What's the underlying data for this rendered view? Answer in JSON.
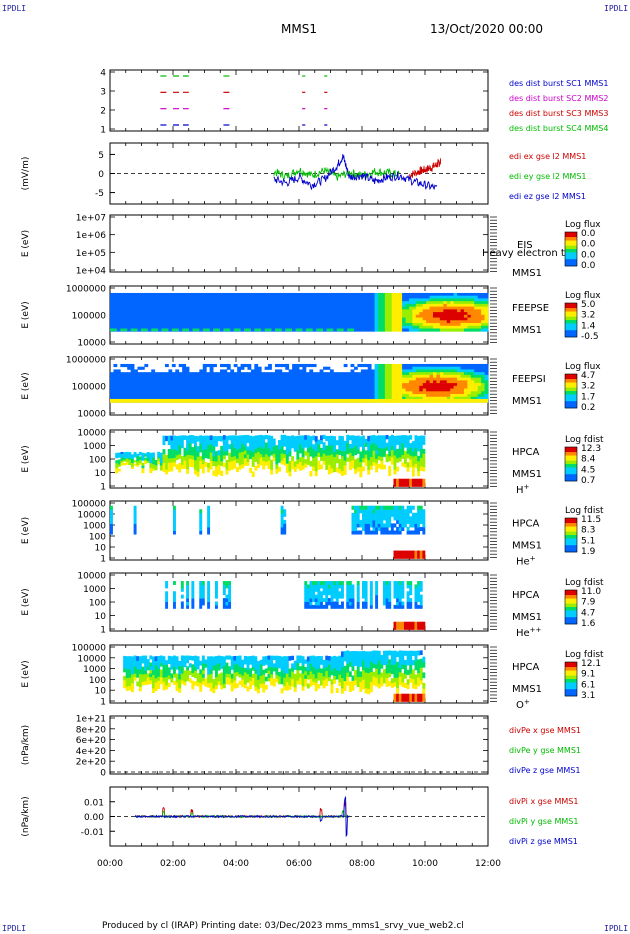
{
  "corners": {
    "tl": "IPDLI",
    "tr": "IPDLI",
    "bl": "IPDLI",
    "br": "IPDLI"
  },
  "header": {
    "mission": "MMS1",
    "date": "13/Oct/2020 00:00"
  },
  "footer": {
    "text": "Produced by cl (IRAP)    Printing date: 03/Dec/2023    mms_mms1_srvy_vue_web2.cl"
  },
  "colors": {
    "c1": "#0000cc",
    "c2": "#cc00cc",
    "c3": "#cc0000",
    "c4": "#00bb00"
  },
  "chart_data": [
    {
      "type": "line",
      "name": "burst-availability",
      "ylim": [
        0.5,
        4.5
      ],
      "yticks": [
        "1",
        "2",
        "3",
        "4"
      ],
      "series": [
        {
          "name": "des dist burst SC1 MMS1",
          "color": "#0000cc",
          "level": 1,
          "segments": [
            [
              1.6,
              1.8
            ],
            [
              2.0,
              2.5
            ],
            [
              3.6,
              3.8
            ],
            [
              6.1,
              6.2
            ],
            [
              6.8,
              6.9
            ]
          ]
        },
        {
          "name": "des dist burst SC2 MMS2",
          "color": "#cc00cc",
          "level": 2,
          "segments": [
            [
              1.6,
              1.8
            ],
            [
              2.0,
              2.5
            ],
            [
              3.6,
              3.8
            ],
            [
              6.1,
              6.2
            ],
            [
              6.8,
              6.9
            ]
          ]
        },
        {
          "name": "des dist burst SC3 MMS3",
          "color": "#cc0000",
          "level": 3,
          "segments": [
            [
              1.6,
              1.8
            ],
            [
              2.0,
              2.5
            ],
            [
              3.6,
              3.8
            ],
            [
              6.1,
              6.2
            ],
            [
              6.8,
              6.9
            ]
          ]
        },
        {
          "name": "des dist burst SC4 MMS4",
          "color": "#00bb00",
          "level": 4,
          "segments": [
            [
              1.6,
              1.8
            ],
            [
              2.0,
              2.5
            ],
            [
              3.6,
              3.8
            ],
            [
              6.1,
              6.2
            ],
            [
              6.8,
              6.9
            ]
          ]
        }
      ]
    },
    {
      "type": "line",
      "name": "edi-efield",
      "ylabel": "(mV/m)",
      "ylim": [
        -8,
        8
      ],
      "yticks": [
        "-5",
        "0",
        "5"
      ],
      "series": [
        {
          "name": "edi ex gse l2 MMS1",
          "color": "#cc0000",
          "x": [
            9.5,
            9.8,
            10.0,
            10.2,
            10.4,
            10.5
          ],
          "y": [
            -0.5,
            0.5,
            1.0,
            1.5,
            2.5,
            3.0
          ]
        },
        {
          "name": "edi ey gse l2 MMS1",
          "color": "#00bb00",
          "x": [
            5.2,
            5.6,
            6.0,
            6.4,
            6.8,
            7.2,
            7.6,
            8.0,
            8.4,
            8.8,
            9.2
          ],
          "y": [
            0.5,
            -0.8,
            1.0,
            -0.5,
            0.8,
            -1.0,
            0.3,
            -0.5,
            0.5,
            0.2,
            -0.3
          ]
        },
        {
          "name": "edi ez gse l2 MMS1",
          "color": "#0000cc",
          "x": [
            5.2,
            5.6,
            6.0,
            6.4,
            6.8,
            7.2,
            7.4,
            7.6,
            8.0,
            8.4,
            8.8,
            9.2,
            9.6,
            10.0,
            10.4
          ],
          "y": [
            -1.5,
            -2.5,
            -1.0,
            -3.0,
            -1.5,
            2.0,
            4.5,
            -1.0,
            -0.5,
            -2.0,
            -1.0,
            -0.5,
            -2.0,
            -3.0,
            -4.0
          ]
        }
      ]
    },
    {
      "type": "heatmap",
      "name": "eis",
      "ylabel": "E (eV)",
      "yticks": [
        "1e+04",
        "1e+05",
        "1e+06",
        "1e+07"
      ],
      "labels": [
        "EIS",
        "MMS1"
      ],
      "overlap_text": "Heavy electron tof",
      "colorbar": {
        "title": "Log flux",
        "ticks": [
          "0.0",
          "0.0",
          "0.0",
          "0.0"
        ]
      }
    },
    {
      "type": "heatmap",
      "name": "feeps-electron",
      "ylabel": "E (eV)",
      "yticks": [
        "10000",
        "100000",
        "1000000"
      ],
      "labels": [
        "FEEPSE",
        "MMS1"
      ],
      "colorbar": {
        "title": "Log flux",
        "ticks": [
          "5.0",
          "3.2",
          "1.4",
          "-0.5"
        ]
      }
    },
    {
      "type": "heatmap",
      "name": "feeps-ion",
      "ylabel": "E (eV)",
      "yticks": [
        "10000",
        "100000",
        "1000000"
      ],
      "labels": [
        "FEEPSI",
        "MMS1"
      ],
      "colorbar": {
        "title": "Log flux",
        "ticks": [
          "4.7",
          "3.2",
          "1.7",
          "0.2"
        ]
      }
    },
    {
      "type": "heatmap",
      "name": "hpca-h",
      "ylabel": "E (eV)",
      "yticks": [
        "1",
        "10",
        "100",
        "1000",
        "10000"
      ],
      "labels": [
        "HPCA",
        "MMS1"
      ],
      "species": "H+",
      "colorbar": {
        "title": "Log fdist",
        "ticks": [
          "12.3",
          "8.4",
          "4.5",
          "0.7"
        ]
      }
    },
    {
      "type": "heatmap",
      "name": "hpca-he",
      "ylabel": "E (eV)",
      "yticks": [
        "1",
        "10",
        "100",
        "1000",
        "10000",
        "100000"
      ],
      "labels": [
        "HPCA",
        "MMS1"
      ],
      "species": "He+",
      "colorbar": {
        "title": "Log fdist",
        "ticks": [
          "11.5",
          "8.3",
          "5.1",
          "1.9"
        ]
      }
    },
    {
      "type": "heatmap",
      "name": "hpca-he2",
      "ylabel": "E (eV)",
      "yticks": [
        "1",
        "10",
        "100",
        "1000",
        "10000"
      ],
      "labels": [
        "HPCA",
        "MMS1"
      ],
      "species": "He++",
      "colorbar": {
        "title": "Log fdist",
        "ticks": [
          "11.0",
          "7.9",
          "4.7",
          "1.6"
        ]
      }
    },
    {
      "type": "heatmap",
      "name": "hpca-o",
      "ylabel": "E (eV)",
      "yticks": [
        "1",
        "10",
        "100",
        "1000",
        "10000",
        "100000"
      ],
      "labels": [
        "HPCA",
        "MMS1"
      ],
      "species": "O+",
      "colorbar": {
        "title": "Log fdist",
        "ticks": [
          "12.1",
          "9.1",
          "6.1",
          "3.1"
        ]
      }
    },
    {
      "type": "line",
      "name": "divpe",
      "ylabel": "(nPa/km)",
      "yticks": [
        "0",
        "2e+20",
        "4e+20",
        "6e+20",
        "8e+20",
        "1e+21"
      ],
      "series": [
        {
          "name": "divPe x gse MMS1",
          "color": "#cc0000"
        },
        {
          "name": "divPe y gse MMS1",
          "color": "#00bb00"
        },
        {
          "name": "divPe z gse MMS1",
          "color": "#0000cc"
        }
      ]
    },
    {
      "type": "line",
      "name": "divpi",
      "ylabel": "(nPa/km)",
      "ylim": [
        -0.02,
        0.02
      ],
      "yticks": [
        "-0.01",
        "0.00",
        "0.01"
      ],
      "series": [
        {
          "name": "divPi x gse MMS1",
          "color": "#cc0000",
          "spikes": [
            [
              1.7,
              0.007
            ],
            [
              2.6,
              0.005
            ],
            [
              6.7,
              0.006
            ],
            [
              7.45,
              0.012
            ]
          ]
        },
        {
          "name": "divPi y gse MMS1",
          "color": "#00bb00",
          "spikes": [
            [
              1.7,
              0.004
            ],
            [
              2.6,
              0.003
            ],
            [
              7.4,
              0.005
            ]
          ]
        },
        {
          "name": "divPi z gse MMS1",
          "color": "#0000cc",
          "spikes": [
            [
              7.5,
              -0.016
            ],
            [
              7.45,
              0.013
            ],
            [
              6.7,
              -0.004
            ]
          ]
        }
      ]
    }
  ],
  "time_axis": {
    "ticks": [
      "00:00",
      "02:00",
      "04:00",
      "06:00",
      "08:00",
      "10:00",
      "12:00"
    ],
    "xlim": [
      0,
      12
    ]
  }
}
